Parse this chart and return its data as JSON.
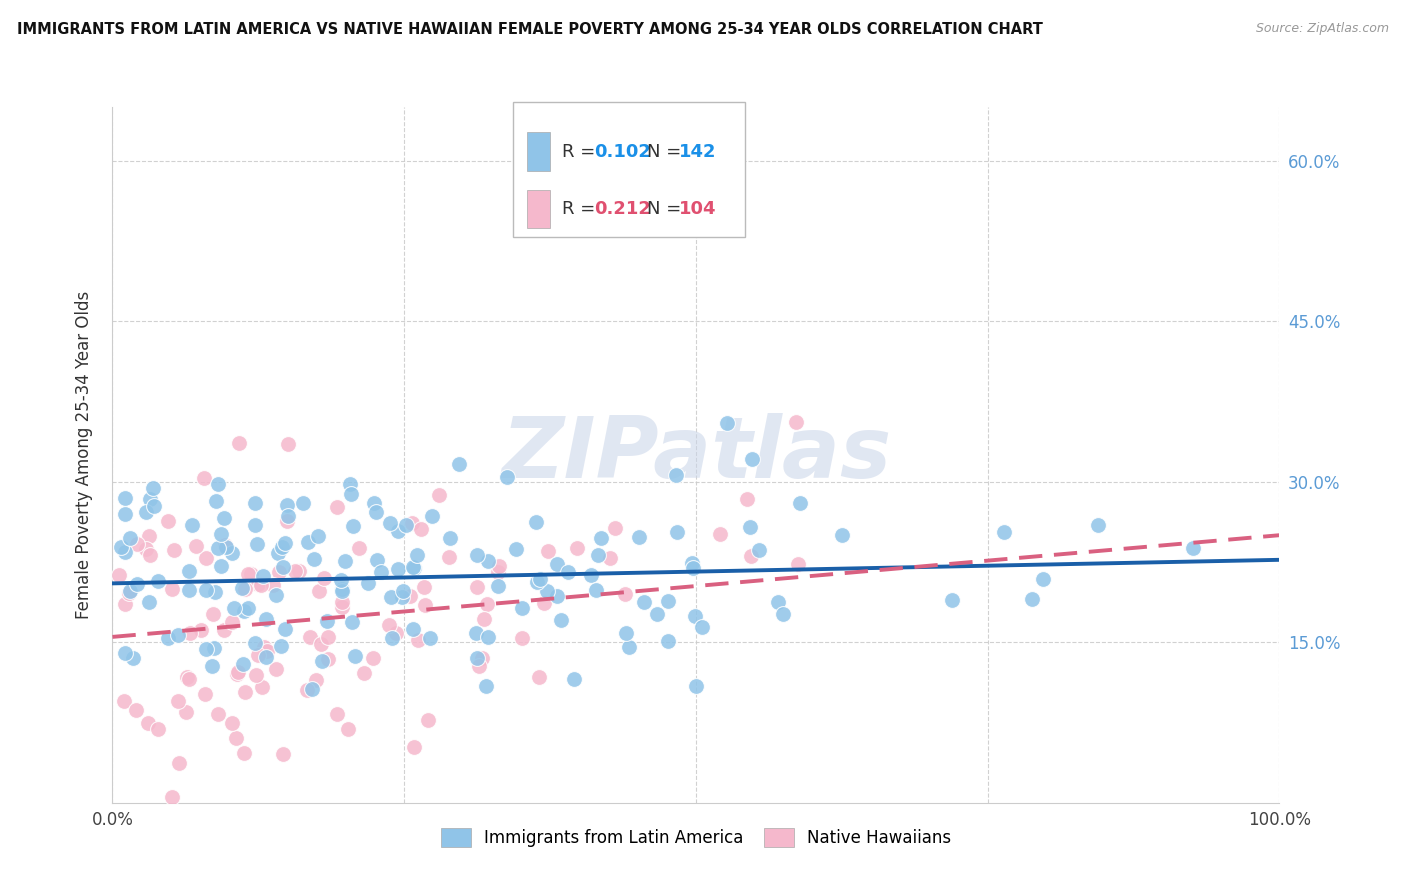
{
  "title": "IMMIGRANTS FROM LATIN AMERICA VS NATIVE HAWAIIAN FEMALE POVERTY AMONG 25-34 YEAR OLDS CORRELATION CHART",
  "source": "Source: ZipAtlas.com",
  "ylabel": "Female Poverty Among 25-34 Year Olds",
  "xlim": [
    0,
    1.0
  ],
  "ylim": [
    0,
    0.65
  ],
  "xticklabels": [
    "0.0%",
    "",
    "",
    "",
    "100.0%"
  ],
  "ytick_right_labels": [
    "15.0%",
    "30.0%",
    "45.0%",
    "60.0%"
  ],
  "ytick_right_vals": [
    0.15,
    0.3,
    0.45,
    0.6
  ],
  "blue_color": "#90c4e8",
  "pink_color": "#f5b8cc",
  "blue_line_color": "#1a5fa8",
  "pink_line_color": "#d96080",
  "legend_blue_color": "#1a90e8",
  "legend_pink_color": "#e05070",
  "legend_blue_R": "0.102",
  "legend_blue_N": "142",
  "legend_pink_R": "0.212",
  "legend_pink_N": "104",
  "watermark": "ZIPatlas",
  "watermark_color": "#c8d4e8",
  "blue_N": 142,
  "pink_N": 104,
  "blue_intercept": 0.205,
  "blue_slope": 0.022,
  "pink_intercept": 0.155,
  "pink_slope": 0.095,
  "background_color": "#ffffff",
  "grid_color": "#cccccc",
  "right_tick_color": "#5b9bd5"
}
